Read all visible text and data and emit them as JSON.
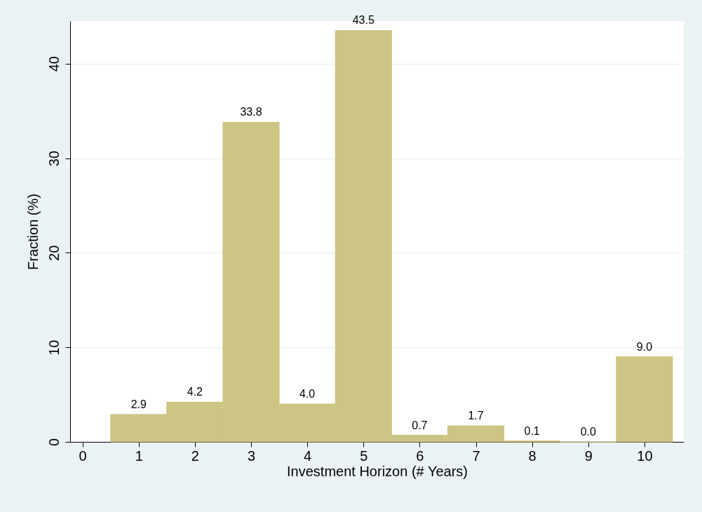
{
  "chart_data": {
    "type": "histogram",
    "xlabel": "Investment Horizon (# Years)",
    "ylabel": "Fraction (%)",
    "bins": [
      0.5,
      1.5,
      2.5,
      3.5,
      4.5,
      5.5,
      6.5,
      7.5,
      8.5,
      9.5,
      10.5
    ],
    "values": [
      2.9,
      4.2,
      33.8,
      4.0,
      43.5,
      0.7,
      1.7,
      0.1,
      0.0,
      9.0
    ],
    "value_labels": [
      "2.9",
      "4.2",
      "33.8",
      "4.0",
      "43.5",
      "0.7",
      "1.7",
      "0.1",
      "0.0",
      "9.0"
    ],
    "color": "#cdc584",
    "xlim": [
      -0.22,
      10.7
    ],
    "xticks": [
      0,
      1,
      2,
      3,
      4,
      5,
      6,
      7,
      8,
      9,
      10
    ],
    "ylim": [
      0,
      44.5
    ],
    "yticks": [
      0,
      10,
      20,
      30,
      40
    ],
    "grid": "y"
  }
}
